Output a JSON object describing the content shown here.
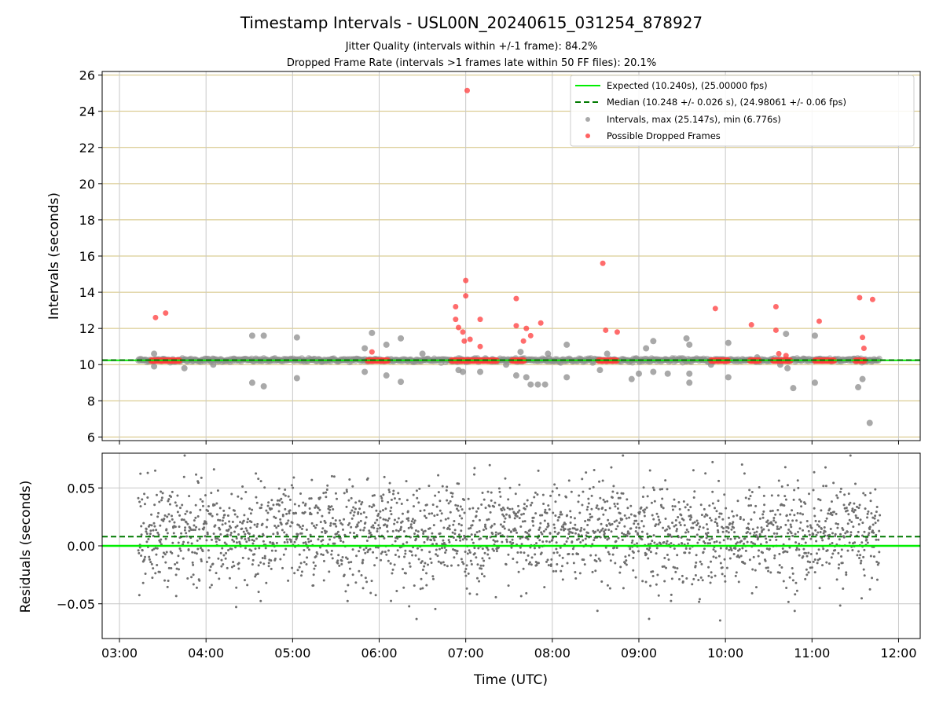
{
  "figure": {
    "title": "Timestamp Intervals - USL00N_20240615_031254_878927",
    "subtitle_1": "Jitter Quality (intervals within +/-1 frame): 84.2%",
    "subtitle_2": "Dropped Frame Rate (intervals >1 frames late within 50 FF files): 20.1%",
    "xlabel": "Time (UTC)"
  },
  "colors": {
    "expected": "#00ee00",
    "median": "#007a00",
    "intervals": "#8c8c8c",
    "dropped": "#ff3b3b",
    "hgrid_top": "#d2c07a",
    "grid": "#c8c8c8",
    "residual_points": "#6e6e6e"
  },
  "chart_data": [
    {
      "type": "scatter",
      "name": "intervals",
      "ylabel": "Intervals (seconds)",
      "xlim": [
        "02:48",
        "12:15"
      ],
      "ylim": [
        5.8,
        26.2
      ],
      "x_ticks": [
        "03:00",
        "04:00",
        "05:00",
        "06:00",
        "07:00",
        "08:00",
        "09:00",
        "10:00",
        "11:00",
        "12:00"
      ],
      "y_ticks": [
        6,
        8,
        10,
        12,
        14,
        16,
        18,
        20,
        22,
        24,
        26
      ],
      "grid": true,
      "legend_position": "top-right",
      "legend": [
        "Expected (10.240s), (25.00000 fps)",
        "Median (10.248 +/- 0.026 s), (24.98061 +/- 0.06 fps)",
        "Intervals, max (25.147s), min (6.776s)",
        "Possible Dropped Frames"
      ],
      "expected_value": 10.24,
      "median_value": 10.248,
      "data_time_range": [
        "03:13",
        "11:47"
      ],
      "baseline_band": [
        10.1,
        10.35
      ],
      "intervals_outliers": [
        [
          "03:24",
          10.6
        ],
        [
          "03:24",
          9.9
        ],
        [
          "03:45",
          9.8
        ],
        [
          "04:05",
          10.0
        ],
        [
          "04:32",
          9.0
        ],
        [
          "04:32",
          11.6
        ],
        [
          "04:40",
          11.6
        ],
        [
          "04:40",
          8.8
        ],
        [
          "05:03",
          9.25
        ],
        [
          "05:03",
          11.5
        ],
        [
          "05:50",
          10.9
        ],
        [
          "05:50",
          9.6
        ],
        [
          "05:55",
          11.75
        ],
        [
          "06:05",
          9.4
        ],
        [
          "06:05",
          11.1
        ],
        [
          "06:15",
          11.45
        ],
        [
          "06:15",
          9.05
        ],
        [
          "06:30",
          10.6
        ],
        [
          "06:55",
          9.7
        ],
        [
          "06:58",
          9.6
        ],
        [
          "07:10",
          9.6
        ],
        [
          "07:28",
          10.0
        ],
        [
          "07:35",
          9.4
        ],
        [
          "07:38",
          10.7
        ],
        [
          "07:42",
          9.3
        ],
        [
          "07:45",
          8.9
        ],
        [
          "07:50",
          8.9
        ],
        [
          "07:55",
          8.9
        ],
        [
          "07:57",
          10.6
        ],
        [
          "08:10",
          9.3
        ],
        [
          "08:10",
          11.1
        ],
        [
          "08:33",
          9.7
        ],
        [
          "08:38",
          10.6
        ],
        [
          "08:55",
          9.2
        ],
        [
          "09:00",
          9.5
        ],
        [
          "09:05",
          10.9
        ],
        [
          "09:10",
          11.3
        ],
        [
          "09:10",
          9.6
        ],
        [
          "09:20",
          9.5
        ],
        [
          "09:33",
          11.45
        ],
        [
          "09:35",
          11.1
        ],
        [
          "09:35",
          9.5
        ],
        [
          "09:35",
          9.0
        ],
        [
          "09:50",
          10.0
        ],
        [
          "10:02",
          11.2
        ],
        [
          "10:02",
          9.3
        ],
        [
          "10:22",
          10.4
        ],
        [
          "10:38",
          10.0
        ],
        [
          "10:42",
          11.7
        ],
        [
          "10:43",
          9.8
        ],
        [
          "10:47",
          8.7
        ],
        [
          "11:02",
          11.6
        ],
        [
          "11:02",
          9.0
        ],
        [
          "11:35",
          9.2
        ],
        [
          "11:32",
          8.75
        ],
        [
          "11:38",
          10.2
        ],
        [
          "11:40",
          6.776
        ]
      ],
      "dropped": [
        [
          "03:25",
          12.6
        ],
        [
          "03:32",
          12.85
        ],
        [
          "05:55",
          10.7
        ],
        [
          "06:53",
          13.2
        ],
        [
          "06:53",
          12.5
        ],
        [
          "06:55",
          12.05
        ],
        [
          "06:58",
          11.8
        ],
        [
          "06:59",
          11.3
        ],
        [
          "07:00",
          13.8
        ],
        [
          "07:00",
          14.65
        ],
        [
          "07:01",
          25.147
        ],
        [
          "07:03",
          11.4
        ],
        [
          "07:10",
          11.0
        ],
        [
          "07:10",
          12.5
        ],
        [
          "07:35",
          13.65
        ],
        [
          "07:35",
          12.15
        ],
        [
          "07:40",
          11.3
        ],
        [
          "07:42",
          12.0
        ],
        [
          "07:45",
          11.6
        ],
        [
          "07:52",
          12.3
        ],
        [
          "08:35",
          15.6
        ],
        [
          "08:37",
          11.9
        ],
        [
          "08:45",
          11.8
        ],
        [
          "09:53",
          13.1
        ],
        [
          "10:18",
          12.2
        ],
        [
          "10:35",
          13.2
        ],
        [
          "10:35",
          11.9
        ],
        [
          "10:37",
          10.6
        ],
        [
          "10:42",
          10.5
        ],
        [
          "11:05",
          12.4
        ],
        [
          "11:33",
          13.7
        ],
        [
          "11:35",
          11.5
        ],
        [
          "11:36",
          10.9
        ],
        [
          "11:42",
          13.6
        ]
      ],
      "dropped_clusters": [
        [
          "03:22",
          "03:42"
        ],
        [
          "05:52",
          "06:06"
        ],
        [
          "06:50",
          "07:22"
        ],
        [
          "07:32",
          "07:41"
        ],
        [
          "08:32",
          "08:45"
        ],
        [
          "09:50",
          "10:02"
        ],
        [
          "10:17",
          "10:24"
        ],
        [
          "10:33",
          "10:45"
        ],
        [
          "11:02",
          "11:16"
        ],
        [
          "11:30",
          "11:37"
        ]
      ]
    },
    {
      "type": "scatter",
      "name": "residuals",
      "ylabel": "Residuals (seconds)",
      "xlim": [
        "02:48",
        "12:15"
      ],
      "ylim": [
        -0.08,
        0.08
      ],
      "x_ticks": [
        "03:00",
        "04:00",
        "05:00",
        "06:00",
        "07:00",
        "08:00",
        "09:00",
        "10:00",
        "11:00",
        "12:00"
      ],
      "y_ticks": [
        0.05,
        0.0,
        -0.05
      ],
      "y_tick_labels": [
        "0.05",
        "0.00",
        "−0.05"
      ],
      "grid": true,
      "expected_value": 0.0,
      "median_value": 0.008,
      "data_time_range": [
        "03:13",
        "11:47"
      ],
      "residual_spread": {
        "mean": 0.01,
        "sd": 0.022,
        "clip": [
          -0.078,
          0.078
        ]
      }
    }
  ]
}
